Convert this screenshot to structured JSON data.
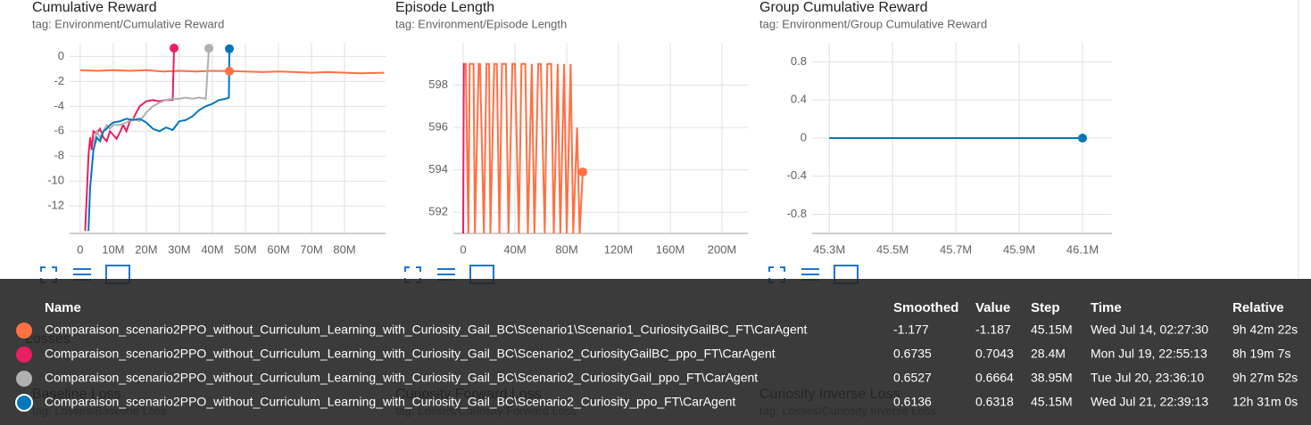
{
  "chart_data": [
    {
      "type": "line",
      "title": "Cumulative Reward",
      "subtitle": "tag: Environment/Cumulative Reward",
      "xlim": [
        -3200000,
        92400000
      ],
      "xticks": [
        0,
        {
          "value": 10000000,
          "label": "10M"
        },
        {
          "value": 20000000,
          "label": "20M"
        },
        {
          "value": 30000000,
          "label": "30M"
        },
        {
          "value": 40000000,
          "label": "40M"
        },
        {
          "value": 50000000,
          "label": "50M"
        },
        {
          "value": 60000000,
          "label": "60M"
        },
        {
          "value": 70000000,
          "label": "70M"
        },
        {
          "value": 80000000,
          "label": "80M"
        }
      ],
      "ylim": [
        -14.2,
        1.1
      ],
      "yticks": [
        0,
        -2,
        -4,
        -6,
        -8,
        -10,
        -12
      ],
      "grid": true,
      "hover_dot": "tooltip",
      "series": [
        {
          "color": "#ff7043",
          "x": [
            0,
            5000000,
            10000000,
            15000000,
            20000000,
            25000000,
            30000000,
            35000000,
            40000000,
            45150000,
            50000000,
            55000000,
            60000000,
            65000000,
            70000000,
            75000000,
            80000000,
            85000000,
            92000000
          ],
          "values": [
            -1.1,
            -1.15,
            -1.1,
            -1.15,
            -1.1,
            -1.2,
            -1.15,
            -1.2,
            -1.15,
            -1.177,
            -1.2,
            -1.25,
            -1.2,
            -1.25,
            -1.3,
            -1.25,
            -1.3,
            -1.35,
            -1.3
          ]
        },
        {
          "color": "#e91e63",
          "x": [
            1500000,
            2000000,
            2500000,
            3000000,
            3500000,
            4000000,
            5000000,
            6000000,
            7000000,
            8000000,
            9000000,
            10000000,
            11000000,
            12000000,
            13000000,
            14000000,
            15000000,
            16000000,
            17000000,
            18000000,
            20000000,
            22000000,
            24000000,
            26000000,
            28000000,
            28400000
          ],
          "values": [
            -14,
            -11,
            -8,
            -6.5,
            -7.5,
            -6,
            -6.2,
            -5.8,
            -6.5,
            -6.8,
            -6,
            -6.3,
            -6.6,
            -6.1,
            -5.5,
            -6,
            -5.2,
            -5,
            -4.5,
            -4,
            -3.6,
            -3.5,
            -3.6,
            -3.5,
            -3.5,
            0.6735
          ]
        },
        {
          "color": "#b0b0b0",
          "x": [
            4000000,
            5000000,
            6000000,
            7000000,
            8000000,
            9000000,
            10000000,
            12000000,
            14000000,
            16000000,
            18000000,
            20000000,
            22000000,
            24000000,
            26000000,
            28000000,
            30000000,
            32000000,
            34000000,
            36000000,
            38000000,
            38950000
          ],
          "values": [
            -7,
            -6,
            -6.5,
            -6,
            -5.5,
            -5.8,
            -5.5,
            -5.5,
            -5.3,
            -5,
            -5.2,
            -4.5,
            -4,
            -3.7,
            -3.5,
            -3.4,
            -3.4,
            -3.3,
            -3.4,
            -3.3,
            -3.4,
            0.6527
          ]
        },
        {
          "color": "#0077bb",
          "x": [
            2500000,
            3000000,
            4000000,
            5000000,
            6000000,
            7000000,
            8000000,
            9000000,
            10000000,
            12000000,
            14000000,
            16000000,
            18000000,
            20000000,
            22000000,
            24000000,
            26000000,
            28000000,
            30000000,
            32000000,
            34000000,
            36000000,
            38000000,
            40000000,
            42000000,
            44000000,
            45000000,
            45150000
          ],
          "values": [
            -14,
            -10.5,
            -7.5,
            -6.5,
            -6.8,
            -6,
            -5.8,
            -5.5,
            -5.3,
            -5.2,
            -5,
            -5.1,
            -5,
            -5.3,
            -5.8,
            -6,
            -5.7,
            -5.9,
            -5.2,
            -5.1,
            -4.8,
            -4.3,
            -4,
            -3.8,
            -3.5,
            -3.4,
            -3.3,
            0.6136
          ]
        }
      ]
    },
    {
      "type": "line",
      "title": "Episode Length",
      "subtitle": "tag: Environment/Episode Length",
      "xlim": [
        -7600000,
        220000000
      ],
      "xticks": [
        0,
        {
          "value": 40000000,
          "label": "40M"
        },
        {
          "value": 80000000,
          "label": "80M"
        },
        {
          "value": 120000000,
          "label": "120M"
        },
        {
          "value": 160000000,
          "label": "160M"
        },
        {
          "value": 200000000,
          "label": "200M"
        }
      ],
      "ylim": [
        591,
        600
      ],
      "yticks": [
        592,
        594,
        596,
        598
      ],
      "grid": true,
      "hover_dot": "last",
      "series": [
        {
          "color": "#ff7043",
          "x": [
            1000000,
            2000000,
            4000000,
            5000000,
            8000000,
            9000000,
            12000000,
            13000000,
            16000000,
            18000000,
            20000000,
            21000000,
            24000000,
            26000000,
            28000000,
            30000000,
            33000000,
            35000000,
            38000000,
            40000000,
            43000000,
            45000000,
            48000000,
            50000000,
            53000000,
            55000000,
            58000000,
            60000000,
            63000000,
            65000000,
            68000000,
            70000000,
            73000000,
            75000000,
            78000000,
            80000000,
            83000000,
            85000000,
            88000000,
            90000000,
            92400000
          ],
          "values": [
            599,
            599,
            591,
            599,
            599,
            591,
            599,
            599,
            591,
            599,
            599,
            591,
            599,
            599,
            591,
            599,
            599,
            591,
            599,
            599,
            591,
            599,
            599,
            591,
            599,
            591,
            599,
            599,
            591,
            599,
            599,
            591,
            599,
            591,
            599,
            591,
            599,
            591,
            596,
            591,
            593.9
          ]
        },
        {
          "color": "#e91e63",
          "x": [
            0,
            500000,
            1000000
          ],
          "values": [
            591,
            599,
            599
          ]
        }
      ]
    },
    {
      "type": "line",
      "title": "Group Cumulative Reward",
      "subtitle": "tag: Environment/Group Cumulative Reward",
      "xlim": [
        45246000,
        46193000
      ],
      "xticks": [
        {
          "value": 45300000,
          "label": "45.3M"
        },
        {
          "value": 45500000,
          "label": "45.5M"
        },
        {
          "value": 45700000,
          "label": "45.7M"
        },
        {
          "value": 45900000,
          "label": "45.9M"
        },
        {
          "value": 46100000,
          "label": "46.1M"
        }
      ],
      "ylim": [
        -1,
        1
      ],
      "yticks": [
        0.8,
        0.4,
        0,
        -0.4,
        -0.8
      ],
      "grid": true,
      "hover_dot": "last",
      "series": [
        {
          "color": "#0077bb",
          "x": [
            45300000,
            46100000
          ],
          "values": [
            0,
            0
          ]
        }
      ]
    }
  ],
  "losses": {
    "title": "Losses",
    "cards": [
      {
        "title": "Baseline Loss",
        "tag": "tag: Losses/Baseline Loss"
      },
      {
        "title": "Curiosity Forward Loss",
        "tag": "tag: Losses/Curiosity Forward Loss"
      },
      {
        "title": "Curiosity Inverse Loss",
        "tag": "tag: Losses/Curiosity Inverse Loss"
      }
    ]
  },
  "tooltip": {
    "headers": [
      "Name",
      "Smoothed",
      "Value",
      "Step",
      "Time",
      "Relative"
    ],
    "rows": [
      {
        "name": "Comparaison_scenario2PPO_without_Curriculum_Learning_with_Curiosity_Gail_BC\\Scenario1\\Scenario1_CuriosityGailBC_FT\\CarAgent",
        "smoothed": -1.177,
        "value": -1.187,
        "step": {
          "value": 45150000,
          "label": "45.15M"
        },
        "time": "Wed Jul 14, 02:27:30",
        "relative": "9h 42m 22s"
      },
      {
        "name": "Comparaison_scenario2PPO_without_Curriculum_Learning_with_Curiosity_Gail_BC\\Scenario2_CuriosityGailBC_ppo_FT\\CarAgent",
        "smoothed": 0.6735,
        "value": 0.7043,
        "step": {
          "value": 28400000,
          "label": "28.4M"
        },
        "time": "Mon Jul 19, 22:55:13",
        "relative": "8h 19m 7s"
      },
      {
        "name": "Comparaison_scenario2PPO_without_Curriculum_Learning_with_Curiosity_Gail_BC\\Scenario2_CuriosityGail_ppo_FT\\CarAgent",
        "smoothed": 0.6527,
        "value": 0.6664,
        "step": {
          "value": 38950000,
          "label": "38.95M"
        },
        "time": "Tue Jul 20, 23:36:10",
        "relative": "9h 27m 52s"
      },
      {
        "name": "Comparaison_scenario2PPO_without_Curriculum_Learning_with_Curiosity_Gail_BC\\Scenario2_Curiosity_ppo_FT\\CarAgent",
        "smoothed": 0.6136,
        "value": 0.6318,
        "step": {
          "value": 45150000,
          "label": "45.15M"
        },
        "time": "Wed Jul 21, 22:39:13",
        "relative": "12h 31m 0s"
      }
    ]
  }
}
